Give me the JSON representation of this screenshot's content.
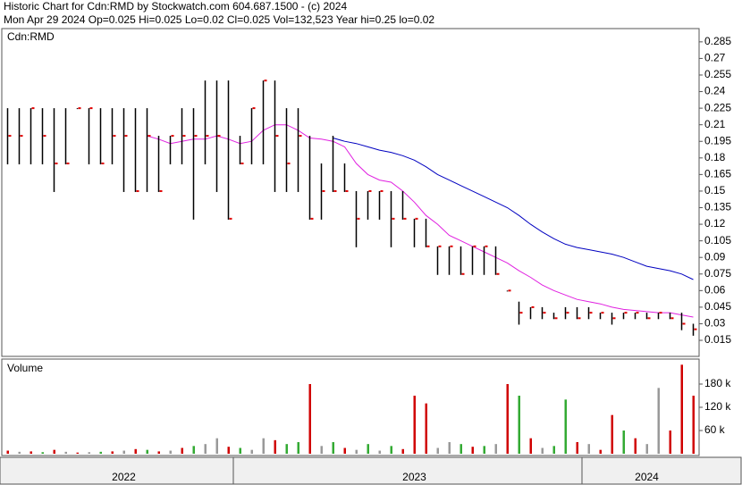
{
  "chart_data": [
    {
      "type": "ohlc",
      "title": "Historic Chart for Cdn:RMD by Stockwatch.com 604.687.1500 - (c) 2024",
      "subtitle": "Mon Apr 29 2024  Op=0.025  Hi=0.025  Lo=0.02  Cl=0.025  Vol=132,523  Year hi=0.25  lo=0.02",
      "label": "Cdn:RMD",
      "color": "#000000",
      "close_color": "#e00000",
      "high": [
        0.225,
        0.225,
        0.225,
        0.225,
        0.225,
        0.225,
        0.225,
        0.225,
        0.225,
        0.225,
        0.225,
        0.225,
        0.225,
        0.2,
        0.2,
        0.225,
        0.225,
        0.25,
        0.25,
        0.25,
        0.2,
        0.225,
        0.25,
        0.25,
        0.225,
        0.225,
        0.2,
        0.175,
        0.2,
        0.175,
        0.15,
        0.15,
        0.15,
        0.15,
        0.15,
        0.125,
        0.125,
        0.1,
        0.1,
        0.1,
        0.1,
        0.1,
        0.1,
        0.06,
        0.05,
        0.045,
        0.045,
        0.04,
        0.045,
        0.045,
        0.045,
        0.04,
        0.04,
        0.04,
        0.04,
        0.04,
        0.04,
        0.04,
        0.04,
        0.03
      ],
      "low": [
        0.175,
        0.175,
        0.175,
        0.175,
        0.15,
        0.175,
        0.225,
        0.175,
        0.175,
        0.175,
        0.15,
        0.15,
        0.15,
        0.15,
        0.175,
        0.175,
        0.125,
        0.175,
        0.15,
        0.125,
        0.175,
        0.175,
        0.175,
        0.15,
        0.15,
        0.15,
        0.125,
        0.125,
        0.15,
        0.15,
        0.1,
        0.125,
        0.125,
        0.1,
        0.125,
        0.1,
        0.1,
        0.075,
        0.075,
        0.075,
        0.075,
        0.075,
        0.075,
        0.06,
        0.03,
        0.035,
        0.035,
        0.035,
        0.035,
        0.035,
        0.035,
        0.035,
        0.03,
        0.035,
        0.035,
        0.035,
        0.035,
        0.035,
        0.025,
        0.02
      ],
      "close": [
        0.2,
        0.2,
        0.225,
        0.2,
        0.175,
        0.175,
        0.225,
        0.225,
        0.175,
        0.2,
        0.2,
        0.15,
        0.2,
        0.15,
        0.2,
        0.2,
        0.2,
        0.2,
        0.2,
        0.125,
        0.175,
        0.225,
        0.25,
        0.2,
        0.175,
        0.2,
        0.125,
        0.15,
        0.15,
        0.15,
        0.125,
        0.15,
        0.15,
        0.125,
        0.125,
        0.125,
        0.1,
        0.1,
        0.1,
        0.075,
        0.1,
        0.1,
        0.075,
        0.06,
        0.04,
        0.045,
        0.04,
        0.035,
        0.04,
        0.035,
        0.04,
        0.04,
        0.035,
        0.04,
        0.04,
        0.035,
        0.04,
        0.035,
        0.03,
        0.025
      ],
      "series": [
        {
          "color": "#e020e0",
          "values": [
            null,
            null,
            null,
            null,
            null,
            null,
            null,
            null,
            null,
            null,
            null,
            null,
            0.2,
            0.197,
            0.193,
            0.195,
            0.197,
            0.197,
            0.2,
            0.197,
            0.193,
            0.195,
            0.205,
            0.21,
            0.21,
            0.205,
            0.198,
            0.197,
            0.195,
            0.19,
            0.175,
            0.165,
            0.16,
            0.158,
            0.15,
            0.14,
            0.128,
            0.12,
            0.11,
            0.105,
            0.1,
            0.095,
            0.09,
            0.085,
            0.078,
            0.072,
            0.065,
            0.06,
            0.056,
            0.052,
            0.05,
            0.048,
            0.045,
            0.043,
            0.042,
            0.041,
            0.04,
            0.04,
            0.038,
            0.036
          ]
        },
        {
          "color": "#0000c0",
          "values": [
            null,
            null,
            null,
            null,
            null,
            null,
            null,
            null,
            null,
            null,
            null,
            null,
            null,
            null,
            null,
            null,
            null,
            null,
            null,
            null,
            null,
            null,
            null,
            null,
            null,
            null,
            null,
            null,
            0.198,
            0.195,
            0.193,
            0.19,
            0.187,
            0.185,
            0.182,
            0.178,
            0.172,
            0.165,
            0.16,
            0.155,
            0.15,
            0.145,
            0.14,
            0.135,
            0.128,
            0.12,
            0.113,
            0.107,
            0.102,
            0.099,
            0.097,
            0.095,
            0.093,
            0.09,
            0.086,
            0.082,
            0.08,
            0.078,
            0.075,
            0.07
          ]
        }
      ],
      "ylim": [
        0,
        0.297
      ],
      "yticks": [
        0.015,
        0.03,
        0.045,
        0.06,
        0.075,
        0.09,
        0.105,
        0.12,
        0.135,
        0.15,
        0.165,
        0.18,
        0.195,
        0.21,
        0.225,
        0.24,
        0.255,
        0.27,
        0.285
      ]
    },
    {
      "type": "bar",
      "title": "Volume",
      "categories": [
        null,
        null,
        null,
        null,
        null,
        null,
        null,
        null,
        null,
        null,
        "2022",
        null,
        null,
        null,
        null,
        null,
        null,
        null,
        null,
        null,
        null,
        null,
        null,
        null,
        null,
        null,
        null,
        null,
        null,
        null,
        null,
        null,
        null,
        null,
        null,
        "2023",
        null,
        null,
        null,
        null,
        null,
        null,
        null,
        null,
        null,
        null,
        null,
        null,
        null,
        null,
        null,
        null,
        null,
        null,
        null,
        "2024",
        null,
        null,
        null,
        null
      ],
      "values": [
        8000,
        5000,
        6000,
        4000,
        10000,
        5000,
        3000,
        4000,
        5000,
        6000,
        8000,
        12000,
        10000,
        6000,
        8000,
        15000,
        20000,
        25000,
        40000,
        18000,
        15000,
        10000,
        40000,
        35000,
        25000,
        30000,
        180000,
        20000,
        30000,
        15000,
        10000,
        25000,
        8000,
        20000,
        12000,
        150000,
        130000,
        15000,
        30000,
        25000,
        18000,
        20000,
        25000,
        180000,
        150000,
        40000,
        15000,
        20000,
        140000,
        30000,
        25000,
        10000,
        100000,
        60000,
        40000,
        25000,
        170000,
        60000,
        230000,
        150000
      ],
      "colors": [
        "#d00000",
        "#999999",
        "#d00000",
        "#33aa33",
        "#d00000",
        "#999999",
        "#d00000",
        "#999999",
        "#33aa33",
        "#d00000",
        "#999999",
        "#d00000",
        "#33aa33",
        "#d00000",
        "#999999",
        "#d00000",
        "#33aa33",
        "#999999",
        "#999999",
        "#d00000",
        "#33aa33",
        "#999999",
        "#999999",
        "#d00000",
        "#33aa33",
        "#33aa33",
        "#d00000",
        "#999999",
        "#33aa33",
        "#d00000",
        "#999999",
        "#33aa33",
        "#999999",
        "#33aa33",
        "#d00000",
        "#d00000",
        "#d00000",
        "#999999",
        "#999999",
        "#33aa33",
        "#d00000",
        "#33aa33",
        "#999999",
        "#d00000",
        "#33aa33",
        "#d00000",
        "#999999",
        "#33aa33",
        "#33aa33",
        "#d00000",
        "#999999",
        "#d00000",
        "#d00000",
        "#33aa33",
        "#d00000",
        "#999999",
        "#999999",
        "#d00000",
        "#d00000",
        "#d00000"
      ],
      "ylim": [
        0,
        240000
      ],
      "yticks": [
        {
          "value": 60000,
          "label": "60 k"
        },
        {
          "value": 120000,
          "label": "120 k"
        },
        {
          "value": 180000,
          "label": "180 k"
        }
      ]
    }
  ]
}
